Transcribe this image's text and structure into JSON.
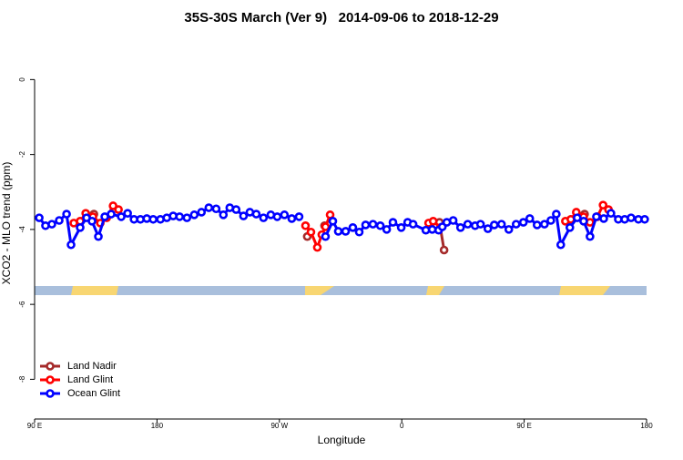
{
  "chart_data": {
    "type": "line",
    "title": "35S-30S March (Ver 9)   2014-09-06 to 2018-12-29",
    "x_label": "Longitude",
    "y_label": "XCO2 - MLO trend (ppm)",
    "xlim": [
      90,
      540
    ],
    "xticks": [
      {
        "value": 90,
        "label": "90 E"
      },
      {
        "value": 180,
        "label": "180"
      },
      {
        "value": 270,
        "label": "90 W"
      },
      {
        "value": 360,
        "label": "0"
      },
      {
        "value": 450,
        "label": "90 E"
      },
      {
        "value": 540,
        "label": "180"
      }
    ],
    "ylim": [
      -9.06,
      1.2
    ],
    "yticks": [
      0,
      -2,
      -4,
      -6,
      -8
    ],
    "legend": "bottom-left",
    "series": [
      {
        "name": "Land Nadir",
        "color": "#a52a2a",
        "x": [
          133.6,
          200,
          290.5,
          297,
          303.2,
          350,
          387.7,
          391.1,
          440,
          494.4
        ],
        "values": [
          -3.59,
          null,
          -4.19,
          null,
          -3.9,
          null,
          -3.81,
          -4.55,
          null,
          -3.59
        ]
      },
      {
        "name": "Land Glint",
        "color": "#ff0000",
        "x": [
          118.8,
          123.5,
          127.6,
          132.9,
          138.3,
          143,
          147.7,
          151.7,
          220,
          289.2,
          293.2,
          297.9,
          301.2,
          303.9,
          307.3,
          340,
          379.7,
          383.1,
          388.4,
          430,
          480.3,
          484.3,
          488.3,
          493.7,
          498.4,
          503.8,
          508,
          512
        ],
        "values": [
          -3.83,
          -3.78,
          -3.57,
          -3.66,
          -3.83,
          -3.69,
          -3.37,
          -3.47,
          null,
          -3.9,
          -4.07,
          -4.48,
          -4.14,
          -3.93,
          -3.61,
          null,
          -3.83,
          -3.78,
          -3.95,
          null,
          -3.78,
          -3.73,
          -3.54,
          -3.66,
          -3.81,
          -3.66,
          -3.35,
          -3.47
        ]
      },
      {
        "name": "Ocean Glint",
        "color": "#0000ff",
        "x": [
          93.4,
          98,
          102.7,
          108.1,
          113.5,
          116.8,
          123.5,
          128.2,
          132.2,
          136.9,
          141.6,
          146.3,
          153.7,
          158.4,
          163.1,
          167.8,
          172.5,
          177.2,
          182.5,
          187.2,
          191.9,
          196.6,
          202,
          207.4,
          212.7,
          218.1,
          223.5,
          228.8,
          233.5,
          238.2,
          243.6,
          248.3,
          253,
          258.3,
          263.7,
          268.4,
          273.7,
          279.1,
          284.5,
          295.9,
          303.9,
          309.3,
          313.3,
          318.7,
          324,
          328.7,
          333.4,
          338.8,
          344.2,
          348.9,
          353.5,
          359.6,
          364.3,
          368.3,
          377.7,
          382.4,
          387.1,
          389.8,
          393.1,
          397.8,
          403.2,
          408.5,
          413.9,
          417.9,
          423.3,
          428,
          433.3,
          438.7,
          444.1,
          449.4,
          454.1,
          459.5,
          464.9,
          469.6,
          473.6,
          476.9,
          483.6,
          489,
          493.7,
          498.4,
          503.1,
          508.5,
          513.8,
          519.2,
          523.9,
          528.6,
          534,
          538.6
        ],
        "values": [
          -3.69,
          -3.9,
          -3.86,
          -3.76,
          -3.59,
          -4.41,
          -3.95,
          -3.69,
          -3.78,
          -4.19,
          -3.66,
          -3.59,
          -3.66,
          -3.57,
          -3.73,
          -3.73,
          -3.71,
          -3.73,
          -3.73,
          -3.69,
          -3.64,
          -3.66,
          -3.69,
          -3.61,
          -3.54,
          -3.42,
          -3.45,
          -3.61,
          -3.42,
          -3.47,
          -3.64,
          -3.54,
          -3.59,
          -3.69,
          -3.61,
          -3.66,
          -3.61,
          -3.71,
          -3.66,
          null,
          -4.19,
          -3.78,
          -4.05,
          -4.05,
          -3.95,
          -4.07,
          -3.88,
          -3.86,
          -3.9,
          -4.0,
          -3.81,
          -3.95,
          -3.81,
          -3.86,
          -4.02,
          -4.0,
          -4.02,
          -3.93,
          -3.81,
          -3.76,
          -3.95,
          -3.86,
          -3.9,
          -3.86,
          -3.98,
          -3.88,
          -3.86,
          -4.0,
          -3.86,
          -3.81,
          -3.71,
          -3.88,
          -3.86,
          -3.76,
          -3.59,
          -4.41,
          -3.95,
          -3.69,
          -3.78,
          -4.19,
          -3.66,
          -3.71,
          -3.57,
          -3.73,
          -3.73,
          -3.69,
          -3.73,
          -3.73
        ]
      }
    ]
  }
}
